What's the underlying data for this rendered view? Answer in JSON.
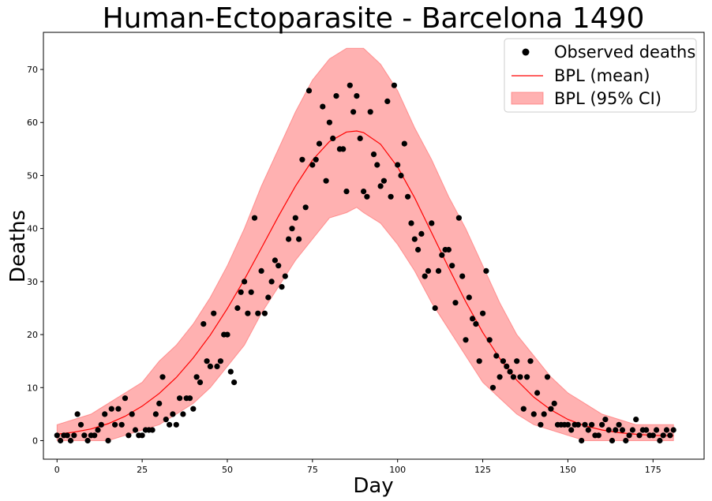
{
  "chart_data": {
    "type": "scatter",
    "title": "Human-Ectoparasite - Barcelona 1490",
    "xlabel": "Day",
    "ylabel": "Deaths",
    "xlim": [
      -4,
      190
    ],
    "ylim": [
      -3.5,
      77
    ],
    "xticks": [
      0,
      25,
      50,
      75,
      100,
      125,
      150,
      175
    ],
    "yticks": [
      0,
      10,
      20,
      30,
      40,
      50,
      60,
      70
    ],
    "grid": false,
    "legend_position": "top-right",
    "legend": [
      "Observed deaths",
      "BPL (mean)",
      "BPL (95% CI)"
    ],
    "series": [
      {
        "name": "Observed deaths",
        "kind": "points",
        "color": "#000000",
        "x": [
          0,
          1,
          2,
          3,
          4,
          5,
          6,
          7,
          8,
          9,
          10,
          11,
          12,
          13,
          14,
          15,
          16,
          17,
          18,
          19,
          20,
          21,
          22,
          23,
          24,
          25,
          26,
          27,
          28,
          29,
          30,
          31,
          32,
          33,
          34,
          35,
          36,
          37,
          38,
          39,
          40,
          41,
          42,
          43,
          44,
          45,
          46,
          47,
          48,
          49,
          50,
          51,
          52,
          53,
          54,
          55,
          56,
          57,
          58,
          59,
          60,
          61,
          62,
          63,
          64,
          65,
          66,
          67,
          68,
          69,
          70,
          71,
          72,
          73,
          74,
          75,
          76,
          77,
          78,
          79,
          80,
          81,
          82,
          83,
          84,
          85,
          86,
          87,
          88,
          89,
          90,
          91,
          92,
          93,
          94,
          95,
          96,
          97,
          98,
          99,
          100,
          101,
          102,
          103,
          104,
          105,
          106,
          107,
          108,
          109,
          110,
          111,
          112,
          113,
          114,
          115,
          116,
          117,
          118,
          119,
          120,
          121,
          122,
          123,
          124,
          125,
          126,
          127,
          128,
          129,
          130,
          131,
          132,
          133,
          134,
          135,
          136,
          137,
          138,
          139,
          140,
          141,
          142,
          143,
          144,
          145,
          146,
          147,
          148,
          149,
          150,
          151,
          152,
          153,
          154,
          155,
          156,
          157,
          158,
          159,
          160,
          161,
          162,
          163,
          164,
          165,
          166,
          167,
          168,
          169,
          170,
          171,
          172,
          173,
          174,
          175,
          176,
          177,
          178,
          179,
          180,
          181
        ],
        "y": [
          1,
          0,
          1,
          1,
          0,
          1,
          5,
          3,
          1,
          0,
          1,
          1,
          2,
          3,
          5,
          0,
          6,
          3,
          6,
          3,
          8,
          1,
          5,
          2,
          1,
          1,
          2,
          2,
          2,
          5,
          7,
          12,
          4,
          3,
          5,
          3,
          8,
          5,
          8,
          8,
          6,
          12,
          11,
          22,
          15,
          14,
          24,
          14,
          15,
          20,
          20,
          13,
          11,
          25,
          28,
          30,
          24,
          28,
          42,
          24,
          32,
          24,
          27,
          30,
          34,
          33,
          29,
          31,
          38,
          40,
          42,
          38,
          53,
          44,
          66,
          52,
          53,
          56,
          63,
          49,
          60,
          57,
          65,
          55,
          55,
          47,
          67,
          62,
          65,
          57,
          47,
          46,
          62,
          54,
          52,
          48,
          49,
          64,
          46,
          67,
          52,
          50,
          56,
          46,
          41,
          38,
          36,
          39,
          31,
          32,
          41,
          25,
          32,
          35,
          36,
          36,
          33,
          26,
          42,
          31,
          19,
          27,
          23,
          22,
          15,
          24,
          32,
          19,
          10,
          16,
          12,
          15,
          14,
          13,
          12,
          15,
          12,
          6,
          12,
          15,
          5,
          9,
          3,
          5,
          12,
          6,
          7,
          3,
          3,
          3,
          3,
          2,
          3,
          3,
          0,
          3,
          2,
          3,
          1,
          1,
          3,
          4,
          2,
          0,
          2,
          3,
          2,
          0,
          1,
          2,
          4,
          1,
          2,
          2,
          1,
          1,
          2,
          0,
          1,
          2,
          1,
          2
        ]
      },
      {
        "name": "BPL (mean)",
        "kind": "line",
        "color": "#ff0000",
        "x": [
          0,
          5,
          10,
          15,
          20,
          25,
          30,
          35,
          40,
          45,
          50,
          55,
          60,
          65,
          70,
          75,
          80,
          85,
          88,
          90,
          95,
          100,
          105,
          110,
          115,
          120,
          125,
          130,
          135,
          140,
          145,
          150,
          155,
          160,
          165,
          170,
          175,
          181
        ],
        "y": [
          1.2,
          1.6,
          2.2,
          3.2,
          4.6,
          6.5,
          8.9,
          11.9,
          15.6,
          19.9,
          24.9,
          30.4,
          36.3,
          42.3,
          48.0,
          52.9,
          56.4,
          58.2,
          58.4,
          58.1,
          55.9,
          51.6,
          45.8,
          39.2,
          32.6,
          26.2,
          20.4,
          15.5,
          11.4,
          8.2,
          5.8,
          4.0,
          2.8,
          2.0,
          1.5,
          1.2,
          1.0,
          0.9
        ]
      },
      {
        "name": "BPL (95% CI)",
        "kind": "band",
        "color": "#ff6464",
        "opacity": 0.5,
        "x": [
          0,
          5,
          10,
          15,
          20,
          25,
          30,
          35,
          40,
          45,
          50,
          55,
          60,
          65,
          70,
          75,
          80,
          85,
          88,
          90,
          95,
          100,
          105,
          110,
          115,
          120,
          125,
          130,
          135,
          140,
          145,
          150,
          155,
          160,
          165,
          170,
          175,
          181
        ],
        "lower": [
          0,
          0,
          0,
          0,
          1,
          2,
          3,
          5,
          7,
          10,
          14,
          18,
          24,
          29,
          34,
          38,
          42,
          43,
          44,
          43,
          41,
          37,
          32,
          26,
          21,
          16,
          11,
          8,
          5,
          3,
          2,
          1,
          0,
          0,
          0,
          0,
          0,
          0
        ],
        "upper": [
          3,
          4,
          5,
          7,
          9,
          11,
          15,
          18,
          22,
          27,
          33,
          40,
          48,
          55,
          62,
          68,
          72,
          74,
          74,
          74,
          71,
          66,
          59,
          53,
          46,
          40,
          33,
          26,
          20,
          16,
          12,
          9,
          7,
          5,
          4,
          3,
          3,
          3
        ]
      }
    ]
  }
}
